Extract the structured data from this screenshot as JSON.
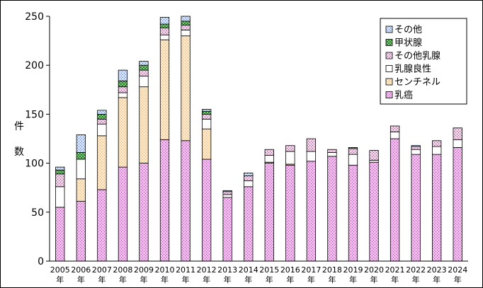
{
  "chart_data": {
    "type": "bar",
    "stacked": true,
    "ylabel": "件 数",
    "ylim": [
      0,
      250
    ],
    "yticks": [
      0,
      50,
      100,
      150,
      200,
      250
    ],
    "legend_position": "top-right",
    "categories": [
      "2005年",
      "2006年",
      "2007年",
      "2008年",
      "2009年",
      "2010年",
      "2011年",
      "2012年",
      "2013年",
      "2014年",
      "2015年",
      "2016年",
      "2017年",
      "2018年",
      "2019年",
      "2020年",
      "2021年",
      "2022年",
      "2023年",
      "2024年"
    ],
    "category_years": [
      "2005",
      "2006",
      "2007",
      "2008",
      "2009",
      "2010",
      "2011",
      "2012",
      "2013",
      "2014",
      "2015",
      "2016",
      "2017",
      "2018",
      "2019",
      "2020",
      "2021",
      "2022",
      "2023",
      "2024"
    ],
    "category_suffix": "年",
    "series": [
      {
        "name": "乳癌",
        "pattern": "dots-magenta",
        "values": [
          55,
          61,
          73,
          96,
          100,
          124,
          123,
          104,
          65,
          76,
          100,
          98,
          102,
          107,
          98,
          101,
          125,
          109,
          109,
          116
        ]
      },
      {
        "name": "センチネル",
        "pattern": "dots-peach",
        "values": [
          0,
          23,
          55,
          71,
          78,
          102,
          107,
          31,
          0,
          0,
          1,
          1,
          0,
          0,
          0,
          0,
          0,
          0,
          0,
          0
        ]
      },
      {
        "name": "乳腺良性",
        "pattern": "solid-white",
        "values": [
          21,
          20,
          12,
          5,
          11,
          5,
          6,
          10,
          3,
          6,
          7,
          13,
          10,
          4,
          11,
          2,
          7,
          5,
          8,
          8
        ]
      },
      {
        "name": "その他乳腺",
        "pattern": "dots-pink",
        "values": [
          13,
          0,
          5,
          6,
          6,
          7,
          5,
          5,
          3,
          5,
          6,
          6,
          13,
          3,
          6,
          10,
          6,
          3,
          6,
          12
        ]
      },
      {
        "name": "甲状腺",
        "pattern": "cross-green",
        "values": [
          4,
          7,
          5,
          6,
          5,
          4,
          4,
          3,
          0,
          0,
          0,
          0,
          0,
          0,
          1,
          0,
          0,
          0,
          0,
          0
        ]
      },
      {
        "name": "その他",
        "pattern": "dots-blue",
        "values": [
          3,
          18,
          4,
          11,
          4,
          7,
          5,
          2,
          1,
          3,
          0,
          0,
          0,
          0,
          0,
          0,
          0,
          1,
          0,
          0
        ]
      }
    ]
  }
}
